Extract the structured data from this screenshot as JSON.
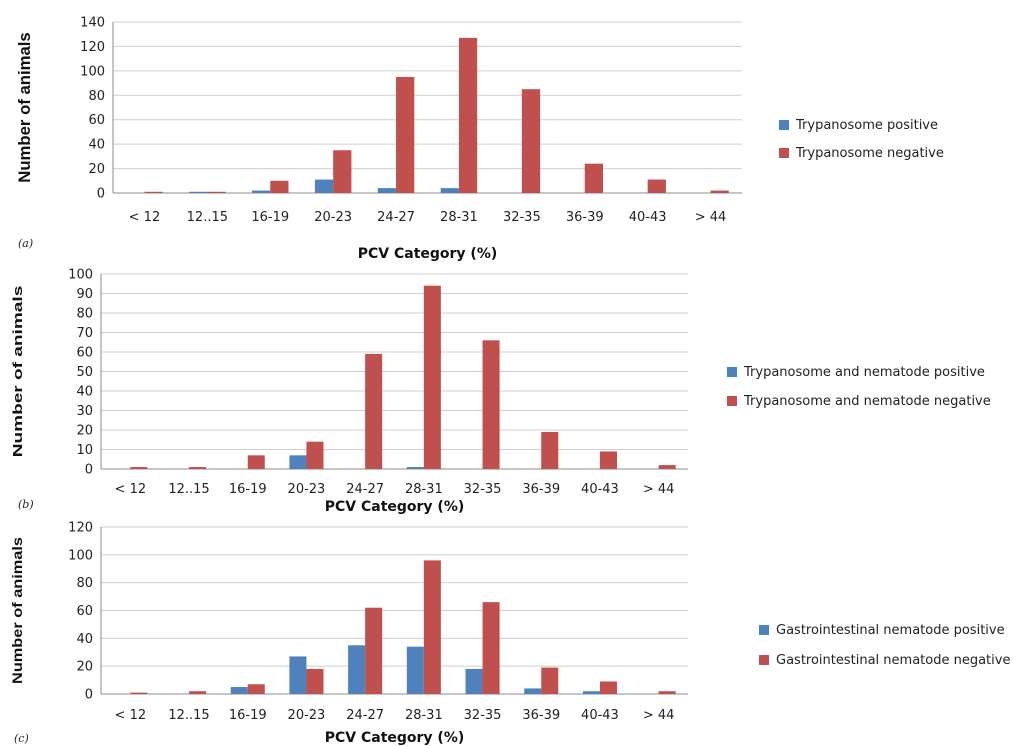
{
  "chart_data": [
    {
      "id": "a",
      "panel_label": "(a)",
      "type": "bar",
      "xlabel": "PCV Category (%)",
      "ylabel": "Number of animals",
      "ylim": [
        0,
        140
      ],
      "ytick_step": 20,
      "grid": true,
      "legend_position": "right",
      "categories": [
        "< 12",
        "12..15",
        "16-19",
        "20-23",
        "24-27",
        "28-31",
        "32-35",
        "36-39",
        "40-43",
        "> 44"
      ],
      "series": [
        {
          "name": "Trypanosome positive",
          "color": "#4f81bd",
          "values": [
            0,
            1,
            2,
            11,
            4,
            4,
            0,
            0,
            0,
            0
          ]
        },
        {
          "name": "Trypanosome negative",
          "color": "#c0504d",
          "values": [
            1,
            1,
            10,
            35,
            95,
            127,
            85,
            24,
            11,
            2
          ]
        }
      ]
    },
    {
      "id": "b",
      "panel_label": "(b)",
      "type": "bar",
      "xlabel": "PCV Category (%)",
      "ylabel": "Number of animals",
      "ylim": [
        0,
        100
      ],
      "ytick_step": 10,
      "grid": true,
      "legend_position": "right",
      "categories": [
        "< 12",
        "12..15",
        "16-19",
        "20-23",
        "24-27",
        "28-31",
        "32-35",
        "36-39",
        "40-43",
        "> 44"
      ],
      "series": [
        {
          "name": "Trypanosome and  nematode positive",
          "color": "#4f81bd",
          "values": [
            0,
            0,
            0,
            7,
            0,
            1,
            0,
            0,
            0,
            0
          ]
        },
        {
          "name": "Trypanosome and nematode negative",
          "color": "#c0504d",
          "values": [
            1,
            1,
            7,
            14,
            59,
            94,
            66,
            19,
            9,
            2
          ]
        }
      ]
    },
    {
      "id": "c",
      "panel_label": "(c)",
      "type": "bar",
      "xlabel": "PCV Category (%)",
      "ylabel": "Number of animals",
      "ylim": [
        0,
        120
      ],
      "ytick_step": 20,
      "grid": true,
      "legend_position": "right",
      "categories": [
        "< 12",
        "12..15",
        "16-19",
        "20-23",
        "24-27",
        "28-31",
        "32-35",
        "36-39",
        "40-43",
        "> 44"
      ],
      "series": [
        {
          "name": "Gastrointestinal nematode positive",
          "color": "#4f81bd",
          "values": [
            0,
            0,
            5,
            27,
            35,
            34,
            18,
            4,
            2,
            0
          ]
        },
        {
          "name": "Gastrointestinal nematode negative",
          "color": "#c0504d",
          "values": [
            1,
            2,
            7,
            18,
            62,
            96,
            66,
            19,
            9,
            2
          ]
        }
      ]
    }
  ]
}
